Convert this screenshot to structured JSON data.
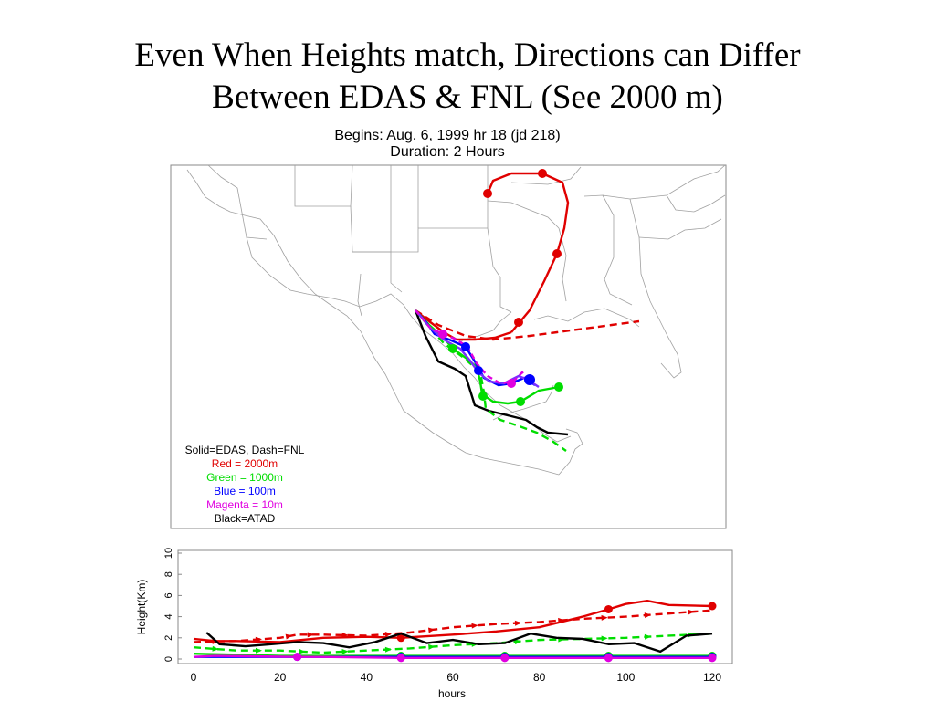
{
  "slide": {
    "title_line1": "Even When Heights match, Directions can Differ",
    "title_line2": "Between EDAS & FNL (See 2000 m)"
  },
  "map": {
    "begins": "Begins:  Aug. 6, 1999 hr 18 (jd 218)",
    "duration": "Duration:  2 Hours",
    "legend": [
      {
        "text": "Solid=EDAS, Dash=FNL",
        "color": "#000000"
      },
      {
        "text": "Red = 2000m",
        "color": "#e00000"
      },
      {
        "text": "Green = 1000m",
        "color": "#00dd00"
      },
      {
        "text": "Blue = 100m",
        "color": "#0000ff"
      },
      {
        "text": "Magenta = 10m",
        "color": "#e000e0"
      },
      {
        "text": "Black=ATAD",
        "color": "#000000"
      }
    ]
  },
  "chart_data": {
    "type": "line",
    "xlabel": "hours",
    "ylabel": "Height(Km)",
    "xlim": [
      0,
      120
    ],
    "ylim": [
      0,
      10
    ],
    "xticks": [
      "0",
      "20",
      "40",
      "60",
      "80",
      "100",
      "120"
    ],
    "yticks": [
      "0",
      "2",
      "4",
      "6",
      "8",
      "10"
    ],
    "series": [
      {
        "style": "solid",
        "color": "#e00000",
        "marker": "circle",
        "x": [
          0,
          5,
          10,
          20,
          30,
          40,
          48,
          60,
          70,
          80,
          90,
          96,
          100,
          105,
          110,
          120
        ],
        "y": [
          1.9,
          1.7,
          1.7,
          1.6,
          2.0,
          2.1,
          2.0,
          2.3,
          2.6,
          3.0,
          4.0,
          4.7,
          5.2,
          5.5,
          5.1,
          5.0
        ]
      },
      {
        "style": "dashed",
        "color": "#e00000",
        "marker": "arrow",
        "x": [
          0,
          10,
          20,
          24,
          30,
          40,
          50,
          60,
          70,
          80,
          90,
          100,
          110,
          120
        ],
        "y": [
          1.6,
          1.7,
          2.0,
          2.3,
          2.3,
          2.2,
          2.5,
          3.0,
          3.3,
          3.5,
          3.8,
          4.0,
          4.3,
          4.6
        ]
      },
      {
        "style": "solid",
        "color": "#00dd00",
        "marker": "circle",
        "x": [
          0,
          10,
          20,
          30,
          40,
          48,
          60,
          72,
          80,
          96,
          110,
          120
        ],
        "y": [
          0.5,
          0.4,
          0.3,
          0.3,
          0.3,
          0.3,
          0.3,
          0.3,
          0.3,
          0.3,
          0.3,
          0.3
        ]
      },
      {
        "style": "dashed",
        "color": "#00dd00",
        "marker": "arrow",
        "x": [
          0,
          10,
          20,
          30,
          40,
          50,
          60,
          70,
          80,
          90,
          100,
          110,
          120
        ],
        "y": [
          1.1,
          0.8,
          0.8,
          0.6,
          0.8,
          1.0,
          1.3,
          1.5,
          1.8,
          1.9,
          2.0,
          2.2,
          2.4
        ]
      },
      {
        "style": "solid",
        "color": "#0000ff",
        "marker": "circle",
        "x": [
          0,
          24,
          48,
          72,
          96,
          120
        ],
        "y": [
          0.2,
          0.2,
          0.2,
          0.2,
          0.2,
          0.2
        ]
      },
      {
        "style": "solid",
        "color": "#e000e0",
        "marker": "circle",
        "x": [
          0,
          5,
          24,
          30,
          48,
          60,
          72,
          84,
          96,
          108,
          120
        ],
        "y": [
          0.2,
          0.3,
          0.2,
          0.2,
          0.1,
          0.1,
          0.1,
          0.1,
          0.1,
          0.1,
          0.1
        ]
      },
      {
        "style": "solid",
        "color": "#000000",
        "marker": "none",
        "x": [
          3,
          6,
          12,
          18,
          24,
          30,
          36,
          42,
          48,
          54,
          60,
          66,
          72,
          78,
          84,
          90,
          96,
          102,
          108,
          114,
          120
        ],
        "y": [
          2.5,
          1.4,
          1.2,
          1.4,
          1.6,
          1.5,
          1.1,
          1.6,
          2.4,
          1.5,
          1.8,
          1.4,
          1.5,
          2.4,
          2.0,
          1.9,
          1.4,
          1.5,
          0.7,
          2.2,
          2.4
        ]
      }
    ]
  }
}
